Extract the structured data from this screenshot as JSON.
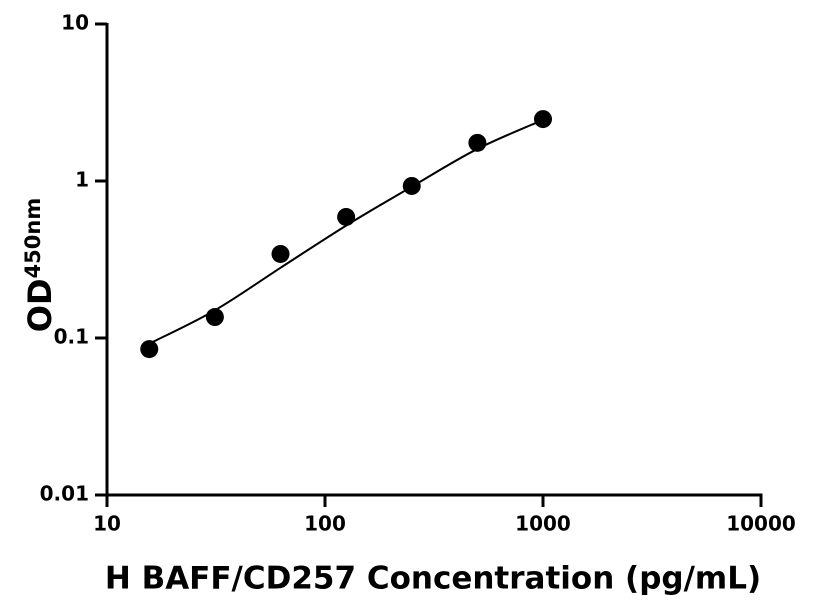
{
  "chart_data": {
    "type": "scatter",
    "xlabel": "H BAFF/CD257 Concentration (pg/mL)",
    "ylabel": "OD",
    "ylabel_sub": "450nm",
    "xscale": "log",
    "yscale": "log",
    "xlim": [
      10,
      10000
    ],
    "ylim": [
      0.01,
      10
    ],
    "xticks": [
      10,
      100,
      1000,
      10000
    ],
    "yticks": [
      0.01,
      0.1,
      1,
      10
    ],
    "series": [
      {
        "color": "#000000",
        "marker": "circle",
        "x": [
          15.625,
          31.25,
          62.5,
          125,
          250,
          500,
          1000
        ],
        "values": [
          0.085,
          0.136,
          0.343,
          0.59,
          0.93,
          1.75,
          2.48
        ]
      },
      {
        "color": "#000000",
        "marker": "none",
        "line": true,
        "x": [
          15.625,
          31.25,
          62.5,
          125,
          250,
          500,
          1000
        ],
        "values": [
          0.092,
          0.15,
          0.28,
          0.52,
          0.92,
          1.6,
          2.45
        ]
      }
    ]
  }
}
